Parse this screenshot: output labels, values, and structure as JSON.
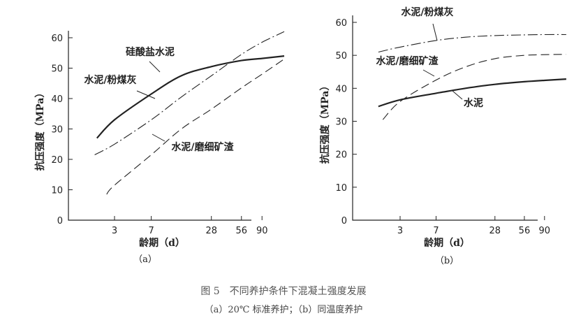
{
  "chart_data": [
    {
      "type": "line",
      "panel_label": "（a）",
      "xlabel": "龄期（d）",
      "ylabel": "抗压强度（MPa）",
      "x_scale": "log",
      "x_ticks": [
        3,
        7,
        28,
        56,
        90
      ],
      "ylim": [
        0,
        60
      ],
      "y_ticks": [
        0,
        10,
        20,
        30,
        40,
        50,
        60
      ],
      "grid": false,
      "series": [
        {
          "name": "硅酸盐水泥",
          "style": "solid",
          "x": [
            2,
            3,
            7,
            14,
            28,
            56,
            90,
            150
          ],
          "y": [
            27,
            33,
            41.5,
            47.5,
            50.5,
            52.5,
            53.2,
            54
          ]
        },
        {
          "name": "水泥/粉煤灰",
          "style": "dashdot",
          "x": [
            1.9,
            3,
            7,
            14,
            28,
            56,
            90,
            150
          ],
          "y": [
            21.5,
            25,
            33,
            40.5,
            47.5,
            54.5,
            58.5,
            62
          ]
        },
        {
          "name": "水泥/磨细矿渣",
          "style": "longdash",
          "x": [
            2.5,
            3,
            7,
            14,
            28,
            56,
            90,
            150
          ],
          "y": [
            8.5,
            11.5,
            21.5,
            30,
            36.5,
            43.5,
            48,
            53
          ]
        }
      ]
    },
    {
      "type": "line",
      "panel_label": "（b）",
      "xlabel": "龄期（d）",
      "ylabel": "抗压强度（MPa）",
      "x_scale": "log",
      "x_ticks": [
        3,
        7,
        28,
        56,
        90
      ],
      "ylim": [
        0,
        60
      ],
      "y_ticks": [
        0,
        10,
        20,
        30,
        40,
        50,
        60
      ],
      "grid": false,
      "series": [
        {
          "name": "水泥/粉煤灰",
          "style": "dashdot",
          "x": [
            1.8,
            3,
            7,
            14,
            28,
            56,
            90,
            150
          ],
          "y": [
            51,
            52.5,
            54.5,
            55.5,
            56,
            56.2,
            56.3,
            56.3
          ]
        },
        {
          "name": "水泥/磨细矿渣",
          "style": "longdash",
          "x": [
            2,
            3,
            7,
            14,
            28,
            56,
            90,
            150
          ],
          "y": [
            30.5,
            36,
            42.5,
            46.5,
            49,
            50,
            50.2,
            50.3
          ]
        },
        {
          "name": "水泥",
          "style": "solid",
          "x": [
            1.8,
            3,
            7,
            14,
            28,
            56,
            90,
            150
          ],
          "y": [
            34.5,
            36.5,
            38.5,
            40,
            41.2,
            42,
            42.4,
            42.8
          ]
        }
      ]
    }
  ],
  "caption": {
    "title": "图 5　不同养护条件下混凝土强度发展",
    "subtitle": "（a）20℃ 标准养护；（b）同温度养护"
  }
}
